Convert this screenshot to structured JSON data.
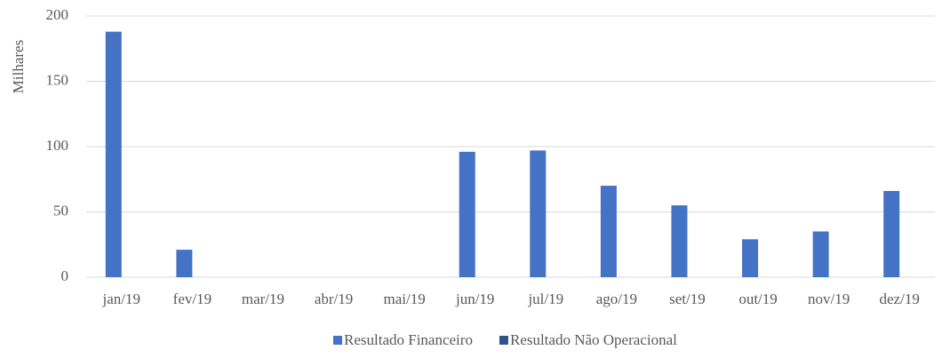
{
  "chart_data": {
    "type": "bar",
    "y_label": "Milhares",
    "categories": [
      "jan/19",
      "fev/19",
      "mar/19",
      "abr/19",
      "mai/19",
      "jun/19",
      "jul/19",
      "ago/19",
      "set/19",
      "out/19",
      "nov/19",
      "dez/19"
    ],
    "series": [
      {
        "name": "Resultado Financeiro",
        "color": "#4472c4",
        "values": [
          188,
          21,
          0,
          0,
          0,
          96,
          97,
          70,
          55,
          29,
          35,
          66
        ]
      },
      {
        "name": "Resultado Não Operacional",
        "color": "#2f528f",
        "values": [
          0,
          0,
          0,
          0,
          0,
          0,
          0,
          0,
          0,
          0,
          0,
          0
        ]
      }
    ],
    "ylim": [
      0,
      200
    ],
    "yticks": [
      0,
      50,
      100,
      150,
      200
    ],
    "grid": true,
    "legend": "bottom"
  }
}
